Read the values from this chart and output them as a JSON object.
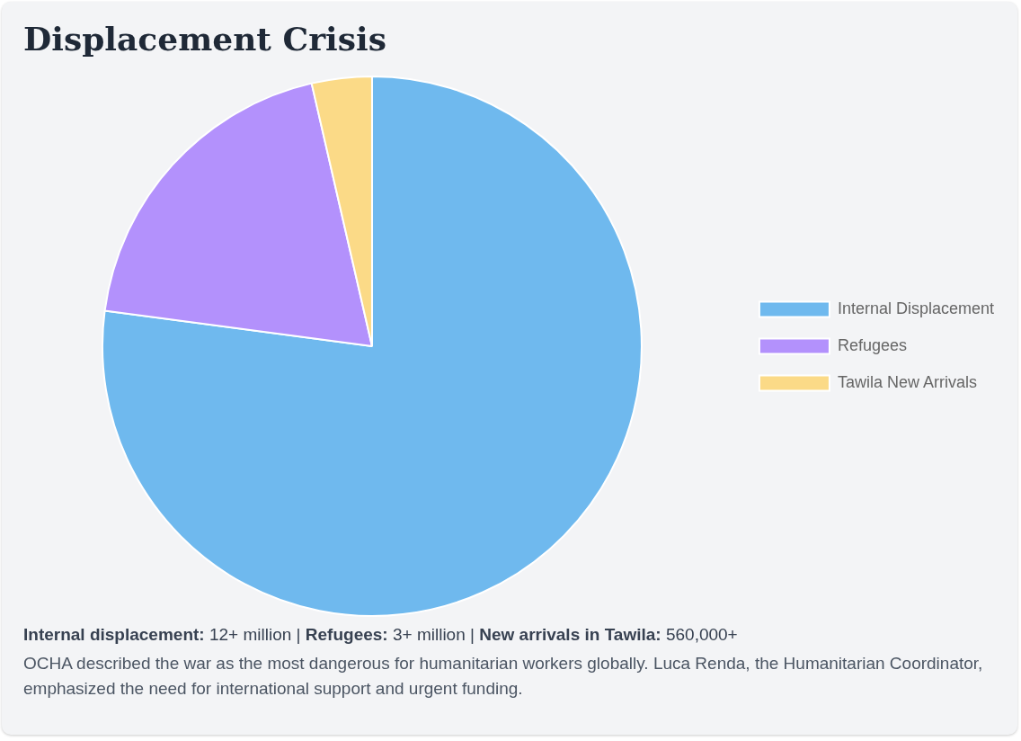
{
  "chart_data": {
    "type": "pie",
    "title": "Displacement Crisis",
    "categories": [
      "Internal Displacement",
      "Refugees",
      "Tawila New Arrivals"
    ],
    "values": [
      77.1,
      19.3,
      3.6
    ],
    "colors": [
      "#6fb9ee",
      "#b391fc",
      "#fbda87"
    ],
    "legend": "right",
    "annotations": [
      "Internal displacement: 12+ million | Refugees: 3+ million | New arrivals in Tawila: 560,000+",
      "OCHA described the war as the most dangerous for humanitarian workers globally. Luca Renda, the Humanitarian Coordinator, emphasized the need for international support and urgent funding."
    ]
  }
}
